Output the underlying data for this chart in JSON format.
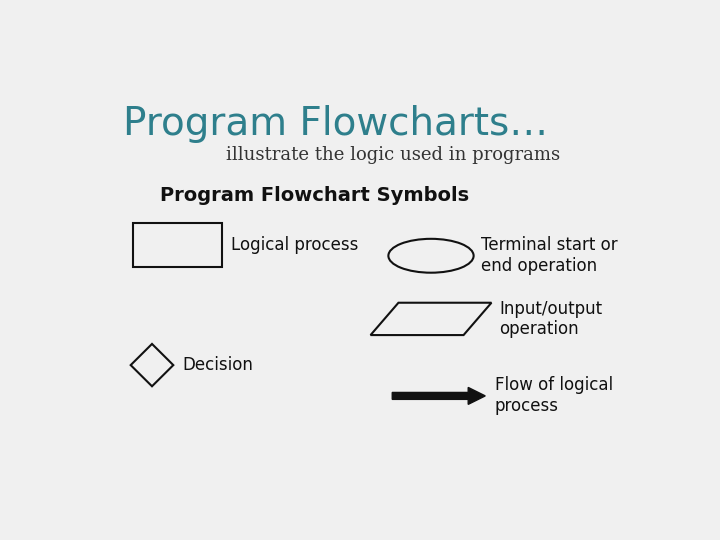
{
  "title": "Program Flowcharts…",
  "subtitle": "illustrate the logic used in programs",
  "section_title": "Program Flowchart Symbols",
  "title_color": "#2E7F8C",
  "subtitle_color": "#333333",
  "section_title_color": "#111111",
  "background_color": "#F0F0F0",
  "shape_color": "#111111",
  "labels": {
    "rect": "Logical process",
    "ellipse": "Terminal start or\nend operation",
    "parallelogram": "Input/output\noperation",
    "diamond": "Decision",
    "arrow": "Flow of logical\nprocess"
  },
  "title_fontsize": 28,
  "subtitle_fontsize": 13,
  "section_fontsize": 14,
  "label_fontsize": 12
}
